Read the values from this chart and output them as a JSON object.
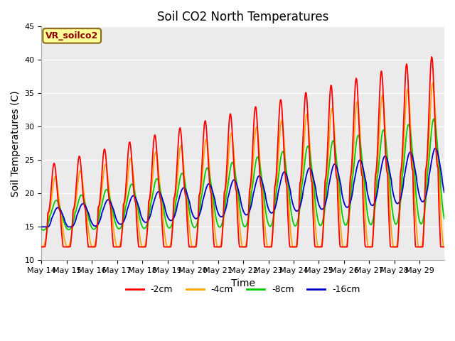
{
  "title": "Soil CO2 North Temperatures",
  "xlabel": "Time",
  "ylabel": "Soil Temperatures (C)",
  "ylim": [
    10,
    45
  ],
  "annotation": "VR_soilco2",
  "annotation_color": "#8B0000",
  "annotation_bg": "#FFFF99",
  "annotation_border": "#8B6914",
  "colors": {
    "-2cm": "#FF0000",
    "-4cm": "#FFA500",
    "-8cm": "#00CC00",
    "-16cm": "#0000CC"
  },
  "legend_labels": [
    "-2cm",
    "-4cm",
    "-8cm",
    "-16cm"
  ],
  "plot_bg": "#EBEBEB",
  "grid_color": "#FFFFFF",
  "title_fontsize": 12,
  "label_fontsize": 10,
  "tick_fontsize": 8
}
